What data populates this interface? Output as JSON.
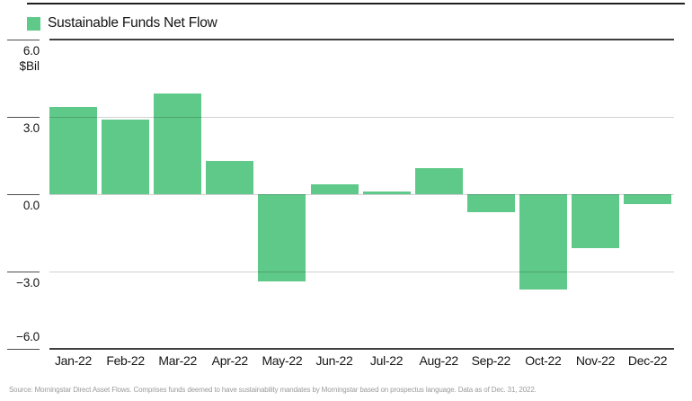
{
  "legend": {
    "label": "Sustainable Funds Net Flow",
    "swatch_icon": "green-square",
    "swatch_color": "#5FC98A"
  },
  "chart_data": {
    "type": "bar",
    "title": "Sustainable Funds Net Flow",
    "categories": [
      "Jan-22",
      "Feb-22",
      "Mar-22",
      "Apr-22",
      "May-22",
      "Jun-22",
      "Jul-22",
      "Aug-22",
      "Sep-22",
      "Oct-22",
      "Nov-22",
      "Dec-22"
    ],
    "values": [
      3.4,
      2.9,
      3.9,
      1.3,
      -3.4,
      0.4,
      0.1,
      1.0,
      -0.7,
      -3.7,
      -2.1,
      -0.4
    ],
    "xlabel": "",
    "ylabel": "$Bil",
    "ylim": [
      -6.0,
      6.0
    ],
    "y_ticks": [
      {
        "label": "6.0",
        "value": 6
      },
      {
        "label": "3.0",
        "value": 3
      },
      {
        "label": "0.0",
        "value": 0
      },
      {
        "label": "−3.0",
        "value": -3
      },
      {
        "label": "−6.0",
        "value": -6
      }
    ],
    "grid": "horizontal",
    "legend_position": "top-left",
    "bar_color": "#5FC98A",
    "gridline_color": "#cccccc",
    "axis_line_color": "#3f3f3f"
  },
  "footer": {
    "source_text": "Source: Morningstar Direct Asset Flows. Comprises funds deemed to have sustainability mandates by Morningstar based on prospectus language. Data as of Dec. 31, 2022."
  }
}
